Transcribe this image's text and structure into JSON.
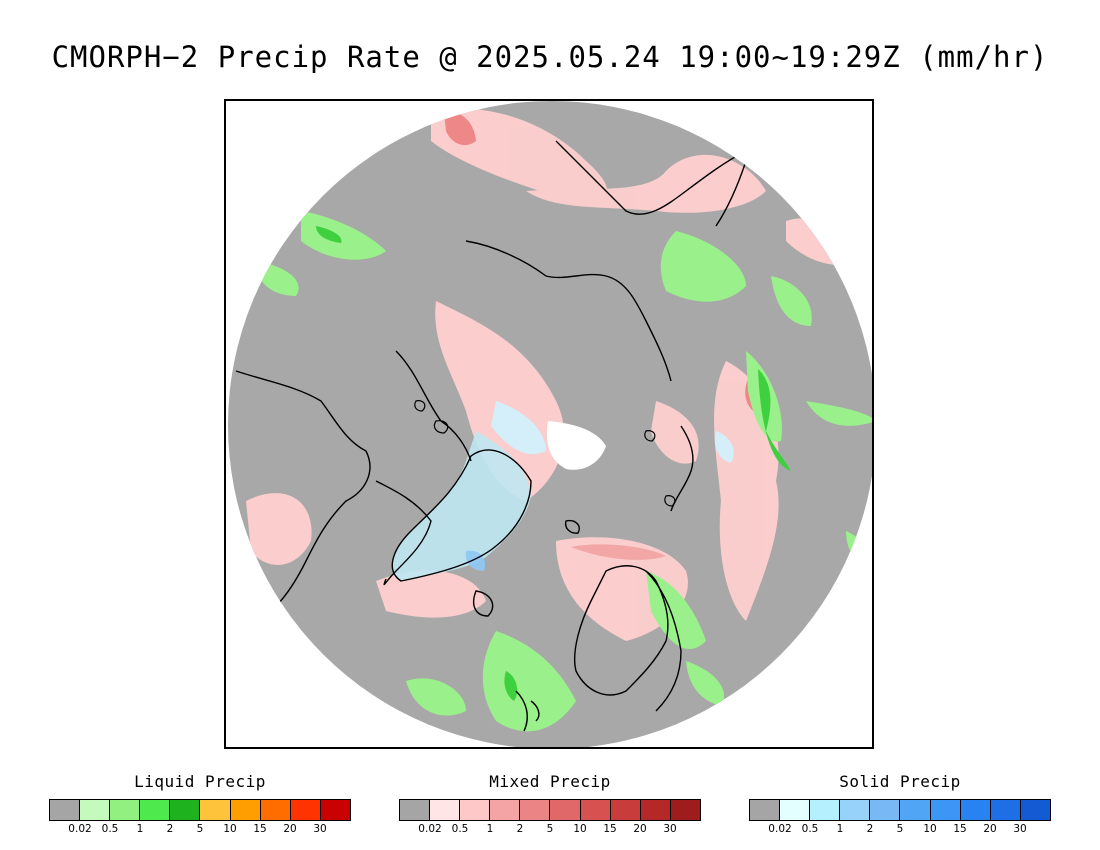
{
  "title": "CMORPH−2 Precip Rate @ 2025.05.24 19:00~19:29Z (mm/hr)",
  "map": {
    "projection": "north-polar-stereographic",
    "features": [
      "land-coastlines",
      "greenland-ice",
      "pole-no-data-white"
    ]
  },
  "legends": [
    {
      "id": "liquid",
      "title": "Liquid Precip",
      "colors": [
        "#a5a5a5",
        "#c4fbbd",
        "#90f181",
        "#4ee94c",
        "#1eb21e",
        "#ffc33b",
        "#ff9e00",
        "#ff6c00",
        "#ff3300",
        "#c80000"
      ],
      "ticks": [
        "0.02",
        "0.5",
        "1",
        "2",
        "5",
        "10",
        "15",
        "20",
        "30"
      ]
    },
    {
      "id": "mixed",
      "title": "Mixed Precip",
      "colors": [
        "#a5a5a5",
        "#ffe5e5",
        "#ffc8c8",
        "#f4a4a4",
        "#eb8585",
        "#e06868",
        "#d75151",
        "#c83c3c",
        "#b42828",
        "#9e1c1c"
      ],
      "ticks": [
        "0.02",
        "0.5",
        "1",
        "2",
        "5",
        "10",
        "15",
        "20",
        "30"
      ]
    },
    {
      "id": "solid",
      "title": "Solid Precip",
      "colors": [
        "#a5a5a5",
        "#e3ffff",
        "#b4f0ff",
        "#96d2fa",
        "#78b9f5",
        "#50a5f5",
        "#3c96f5",
        "#2882f0",
        "#1e6ee6",
        "#145ad2"
      ],
      "ticks": [
        "0.02",
        "0.5",
        "1",
        "2",
        "5",
        "10",
        "15",
        "20",
        "30"
      ]
    }
  ]
}
